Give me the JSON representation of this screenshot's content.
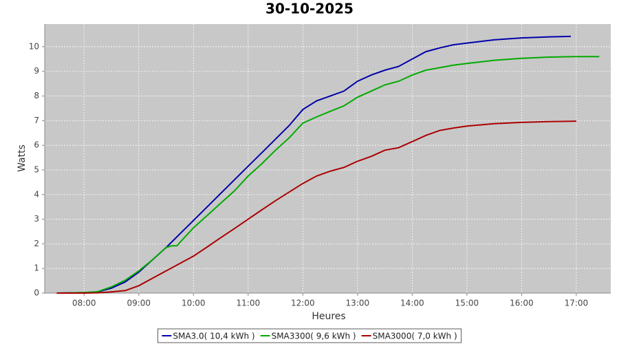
{
  "chart_data": {
    "type": "line",
    "title": "30-10-2025",
    "x_label": "Heures",
    "y_label": "Watts",
    "xlim": [
      7.28,
      17.63
    ],
    "ylim": [
      0,
      10.92
    ],
    "xticks": [
      {
        "value": 8,
        "label": "08:00"
      },
      {
        "value": 9,
        "label": "09:00"
      },
      {
        "value": 10,
        "label": "10:00"
      },
      {
        "value": 11,
        "label": "11:00"
      },
      {
        "value": 12,
        "label": "12:00"
      },
      {
        "value": 13,
        "label": "13:00"
      },
      {
        "value": 14,
        "label": "14:00"
      },
      {
        "value": 15,
        "label": "15:00"
      },
      {
        "value": 16,
        "label": "16:00"
      },
      {
        "value": 17,
        "label": "17:00"
      }
    ],
    "yticks": [
      0,
      1,
      2,
      3,
      4,
      5,
      6,
      7,
      8,
      9,
      10
    ],
    "grid": true,
    "legend": "bottom",
    "series": [
      {
        "name": "SMA3.0( 10,4 kWh )",
        "color": "#0000aa",
        "x": [
          7.5,
          7.75,
          8,
          8.25,
          8.5,
          8.75,
          9,
          9.25,
          9.5,
          9.75,
          10,
          10.25,
          10.5,
          10.75,
          11,
          11.25,
          11.5,
          11.75,
          12,
          12.25,
          12.5,
          12.75,
          13,
          13.25,
          13.5,
          13.75,
          14,
          14.25,
          14.5,
          14.75,
          15,
          15.5,
          16,
          16.5,
          16.9
        ],
        "values": [
          0,
          0.01,
          0.02,
          0.05,
          0.2,
          0.45,
          0.85,
          1.35,
          1.85,
          2.4,
          2.95,
          3.5,
          4.05,
          4.6,
          5.15,
          5.7,
          6.25,
          6.8,
          7.45,
          7.8,
          8.0,
          8.2,
          8.6,
          8.85,
          9.05,
          9.2,
          9.5,
          9.8,
          9.95,
          10.08,
          10.15,
          10.28,
          10.36,
          10.4,
          10.42
        ]
      },
      {
        "name": "SMA3300( 9,6 kWh )",
        "color": "#00aa00",
        "x": [
          7.5,
          7.75,
          8,
          8.25,
          8.5,
          8.75,
          9,
          9.25,
          9.5,
          9.6,
          9.7,
          9.75,
          10,
          10.25,
          10.5,
          10.75,
          11,
          11.25,
          11.5,
          11.75,
          12,
          12.25,
          12.5,
          12.75,
          13,
          13.25,
          13.5,
          13.75,
          14,
          14.25,
          14.5,
          14.75,
          15,
          15.5,
          16,
          16.5,
          17,
          17.42
        ],
        "values": [
          0,
          0.01,
          0.02,
          0.06,
          0.25,
          0.52,
          0.9,
          1.35,
          1.85,
          1.92,
          1.92,
          2.05,
          2.65,
          3.15,
          3.65,
          4.15,
          4.75,
          5.25,
          5.8,
          6.3,
          6.9,
          7.15,
          7.38,
          7.6,
          7.95,
          8.2,
          8.45,
          8.6,
          8.85,
          9.05,
          9.15,
          9.25,
          9.32,
          9.45,
          9.53,
          9.58,
          9.6,
          9.6
        ]
      },
      {
        "name": "SMA3000( 7,0 kWh )",
        "color": "#aa0000",
        "x": [
          7.5,
          8,
          8.25,
          8.5,
          8.75,
          9,
          9.25,
          9.5,
          9.75,
          10,
          10.25,
          10.5,
          10.75,
          11,
          11.25,
          11.5,
          11.75,
          12,
          12.25,
          12.5,
          12.75,
          13,
          13.25,
          13.5,
          13.75,
          14,
          14.25,
          14.5,
          14.75,
          15,
          15.5,
          16,
          16.5,
          17
        ],
        "values": [
          0,
          0,
          0.01,
          0.05,
          0.1,
          0.3,
          0.6,
          0.9,
          1.2,
          1.5,
          1.87,
          2.25,
          2.62,
          3.0,
          3.38,
          3.75,
          4.1,
          4.45,
          4.75,
          4.95,
          5.1,
          5.35,
          5.55,
          5.8,
          5.9,
          6.15,
          6.4,
          6.6,
          6.7,
          6.78,
          6.88,
          6.93,
          6.96,
          6.98
        ]
      }
    ]
  }
}
